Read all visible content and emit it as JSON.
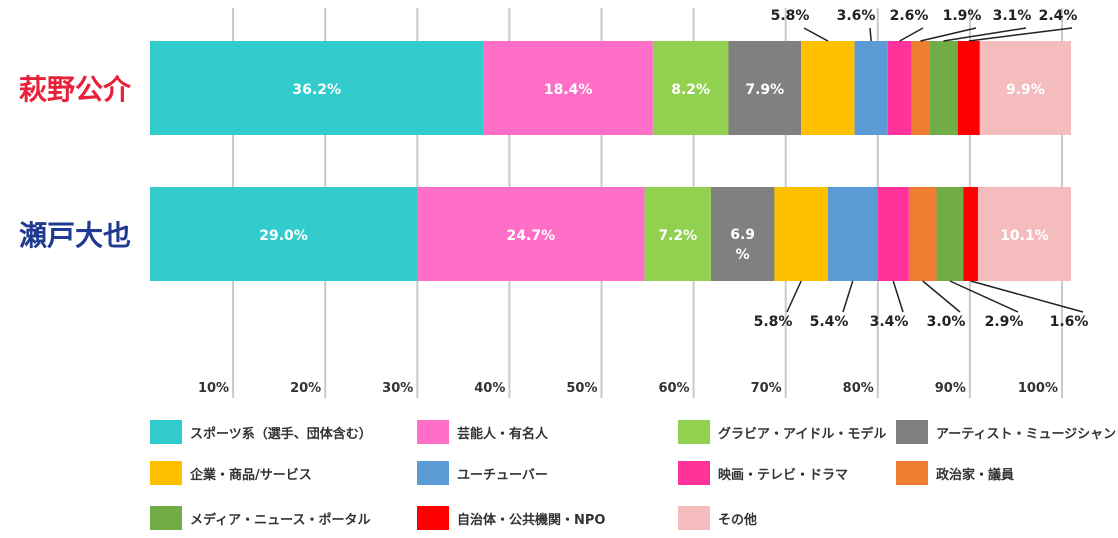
{
  "chart_data": {
    "type": "bar",
    "orientation": "horizontal",
    "stacked": true,
    "percent": true,
    "categories": [
      "萩野公介",
      "瀬戸大也"
    ],
    "category_colors": [
      "#e8203a",
      "#1f3a8f"
    ],
    "xlim": [
      0,
      100
    ],
    "tick_labels": [
      "10%",
      "20%",
      "30%",
      "40%",
      "50%",
      "60%",
      "70%",
      "80%",
      "90%",
      "100%"
    ],
    "grid": true,
    "legend_position": "bottom",
    "series": [
      {
        "name": "スポーツ系（選手、団体含む）",
        "color": "#33cccc",
        "values": [
          36.2,
          29.0
        ],
        "labels": [
          "36.2%",
          "29.0%"
        ]
      },
      {
        "name": "芸能人・有名人",
        "color": "#ff6ec7",
        "values": [
          18.4,
          24.7
        ],
        "labels": [
          "18.4%",
          "24.7%"
        ]
      },
      {
        "name": "グラビア・アイドル・モデル",
        "color": "#92d050",
        "values": [
          8.2,
          7.2
        ],
        "labels": [
          "8.2%",
          "7.2%"
        ]
      },
      {
        "name": "アーティスト・ミュージシャン",
        "color": "#808080",
        "values": [
          7.9,
          6.9
        ],
        "labels": [
          "7.9%",
          "6.9%"
        ]
      },
      {
        "name": "企業・商品/サービス",
        "color": "#ffc000",
        "values": [
          5.8,
          5.8
        ],
        "labels": [
          "5.8%",
          "5.8%"
        ]
      },
      {
        "name": "ユーチューバー",
        "color": "#5b9bd5",
        "values": [
          3.6,
          5.4
        ],
        "labels": [
          "3.6%",
          "5.4%"
        ]
      },
      {
        "name": "映画・テレビ・ドラマ",
        "color": "#ff3399",
        "values": [
          2.6,
          3.4
        ],
        "labels": [
          "2.6%",
          "3.4%"
        ]
      },
      {
        "name": "政治家・議員",
        "color": "#ed7d31",
        "values": [
          1.9,
          3.0
        ],
        "labels": [
          "1.9%",
          "3.0%"
        ]
      },
      {
        "name": "メディア・ニュース・ポータル",
        "color": "#70ad47",
        "values": [
          3.1,
          2.9
        ],
        "labels": [
          "3.1%",
          "2.9%"
        ]
      },
      {
        "name": "自治体・公共機関・NPO",
        "color": "#ff0000",
        "values": [
          2.4,
          1.6
        ],
        "labels": [
          "2.4%",
          "1.6%"
        ]
      },
      {
        "name": "その他",
        "color": "#f4bcbc",
        "values": [
          9.9,
          10.1
        ],
        "labels": [
          "9.9%",
          "10.1%"
        ]
      }
    ]
  }
}
